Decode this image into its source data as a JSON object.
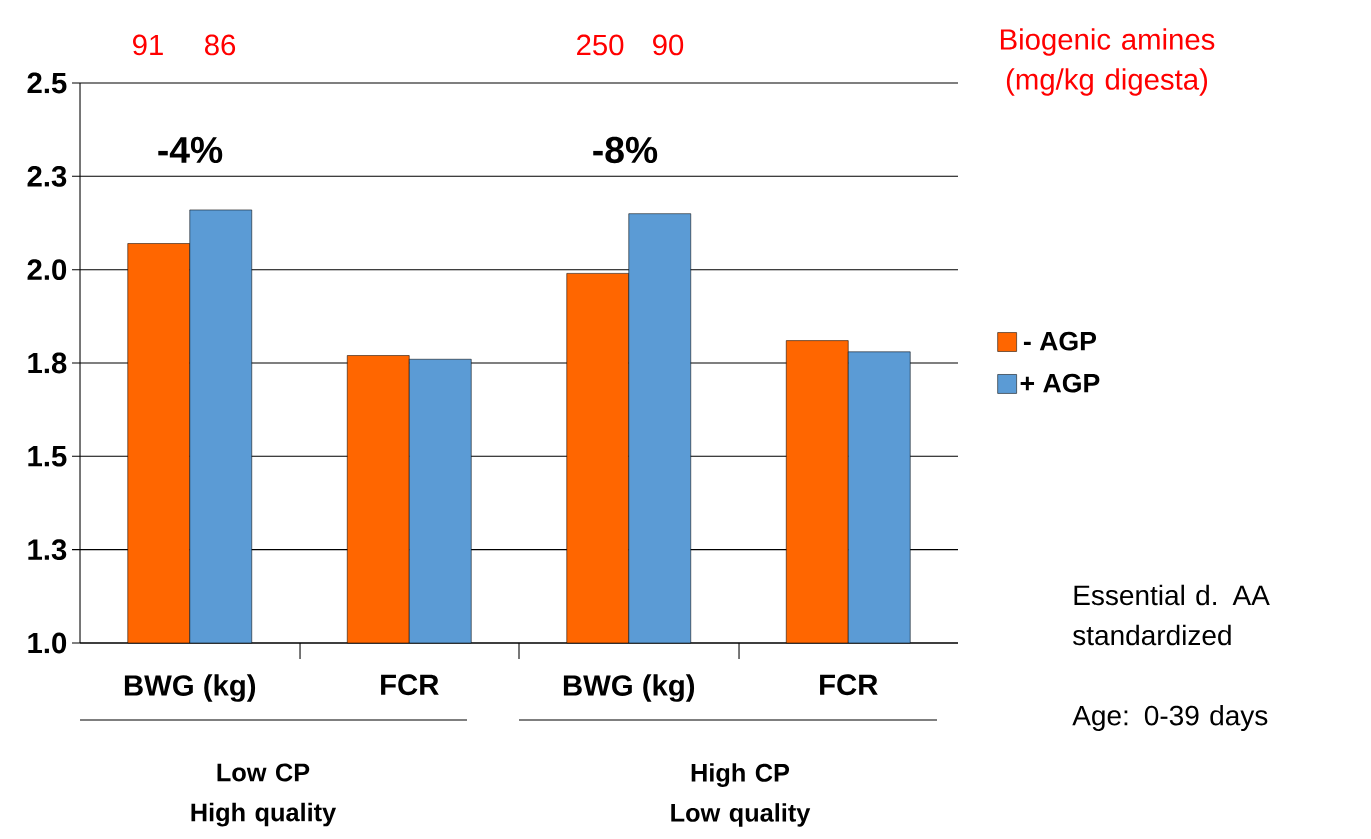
{
  "chart_data": {
    "type": "bar",
    "categories": [
      "BWG (kg)",
      "FCR",
      "BWG (kg)",
      "FCR"
    ],
    "series": [
      {
        "name": "- AGP",
        "color": "#ff6600",
        "values": [
          2.07,
          1.77,
          1.99,
          1.81
        ]
      },
      {
        "name": "+ AGP",
        "color": "#5b9bd5",
        "values": [
          2.16,
          1.76,
          2.15,
          1.78
        ]
      }
    ],
    "ylim": [
      1.0,
      2.5
    ],
    "yticks": [
      {
        "value": 1.0,
        "label": "1.0"
      },
      {
        "value": 1.25,
        "label": "1.3"
      },
      {
        "value": 1.5,
        "label": "1.5"
      },
      {
        "value": 1.75,
        "label": "1.8"
      },
      {
        "value": 2.0,
        "label": "2.0"
      },
      {
        "value": 2.25,
        "label": "2.3"
      },
      {
        "value": 2.5,
        "label": "2.5"
      }
    ],
    "grid": "y",
    "legend": "right",
    "annotations": [
      "91",
      "86",
      "250",
      "90",
      "-4%",
      "-8%",
      "Biogenic amines (mg/kg digesta)",
      "Low CP High quality",
      "High CP Low quality",
      "Essential d. AA standardized",
      "Age: 0-39 days"
    ]
  }
}
